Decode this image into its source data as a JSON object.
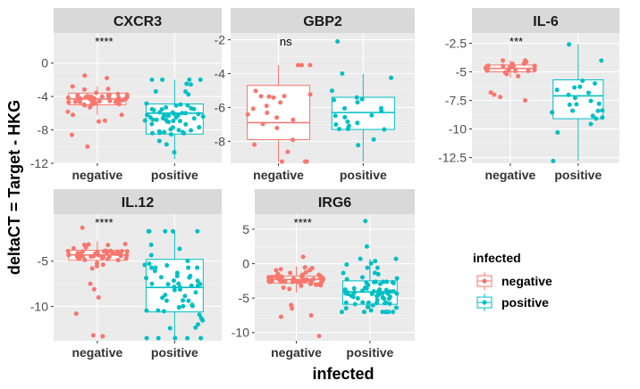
{
  "chart_data": {
    "type": "box+jitter",
    "xlabel": "infected",
    "ylabel": "deltaCT = Target - HKG",
    "categories": [
      "negative",
      "positive"
    ],
    "colors": {
      "negative": "#F8766D",
      "positive": "#00BFC4"
    },
    "legend": {
      "title": "infected",
      "entries": [
        "negative",
        "positive"
      ],
      "position": "right"
    },
    "grid": true,
    "panels": [
      {
        "title": "CXCR3",
        "significance": "****",
        "ylim": [
          -12,
          3.6
        ],
        "yticks": [
          0,
          -4,
          -8,
          -12
        ],
        "groups": [
          {
            "name": "negative",
            "q1": -5.0,
            "median": -4.3,
            "q3": -3.6,
            "whisker_low": -6.2,
            "whisker_high": -2.8,
            "n": 55,
            "outliers": [
              -10.0,
              -8.6,
              -1.5,
              -7.0,
              -6.9,
              -1.8
            ]
          },
          {
            "name": "positive",
            "q1": -8.5,
            "median": -6.0,
            "q3": -4.9,
            "whisker_low": -11.5,
            "whisker_high": -2.0,
            "n": 60,
            "outliers": []
          }
        ]
      },
      {
        "title": "GBP2",
        "significance": "ns",
        "ylim": [
          -9.3,
          -1.6
        ],
        "yticks": [
          -2,
          -4,
          -6,
          -8
        ],
        "groups": [
          {
            "name": "negative",
            "q1": -7.9,
            "median": -6.9,
            "q3": -4.7,
            "whisker_low": -9.2,
            "whisker_high": -3.5,
            "n": 24,
            "outliers": []
          },
          {
            "name": "positive",
            "q1": -7.3,
            "median": -6.3,
            "q3": -5.4,
            "whisker_low": -9.2,
            "whisker_high": -4.0,
            "n": 24,
            "outliers": [
              -2.1
            ]
          }
        ]
      },
      {
        "title": "IL-6",
        "significance": "***",
        "ylim": [
          -13.0,
          -1.6
        ],
        "yticks": [
          -2.5,
          -5.0,
          -7.5,
          -10.0,
          -12.5
        ],
        "groups": [
          {
            "name": "negative",
            "q1": -5.0,
            "median": -4.7,
            "q3": -4.4,
            "whisker_low": -5.5,
            "whisker_high": -4.0,
            "n": 25,
            "outliers": [
              -7.2,
              -6.8,
              -7.0,
              -7.5
            ]
          },
          {
            "name": "positive",
            "q1": -9.1,
            "median": -7.1,
            "q3": -5.7,
            "whisker_low": -12.8,
            "whisker_high": -2.6,
            "n": 25,
            "outliers": []
          }
        ]
      },
      {
        "title": "IL.12",
        "significance": "****",
        "ylim": [
          -13.8,
          0.2
        ],
        "yticks": [
          -5,
          -10
        ],
        "groups": [
          {
            "name": "negative",
            "q1": -4.9,
            "median": -4.3,
            "q3": -3.8,
            "whisker_low": -5.8,
            "whisker_high": -2.8,
            "n": 55,
            "outliers": [
              -13.3,
              -13.2,
              -10.8,
              -9.0,
              -8.1,
              -7.5,
              -1.3
            ]
          },
          {
            "name": "positive",
            "q1": -10.6,
            "median": -7.9,
            "q3": -4.8,
            "whisker_low": -13.5,
            "whisker_high": -1.7,
            "n": 60,
            "outliers": []
          }
        ]
      },
      {
        "title": "IRG6",
        "significance": "****",
        "ylim": [
          -11.2,
          7.2
        ],
        "yticks": [
          5,
          0,
          -5,
          -10
        ],
        "groups": [
          {
            "name": "negative",
            "q1": -2.8,
            "median": -2.3,
            "q3": -1.8,
            "whisker_low": -4.2,
            "whisker_high": -0.4,
            "n": 60,
            "outliers": [
              -10.5,
              -7.5,
              -6.5,
              -7.7,
              -6.0,
              1.0
            ]
          },
          {
            "name": "positive",
            "q1": -5.9,
            "median": -4.1,
            "q3": -2.5,
            "whisker_low": -7.0,
            "whisker_high": 0.7,
            "n": 75,
            "outliers": [
              6.2,
              2.5
            ]
          }
        ]
      }
    ]
  }
}
